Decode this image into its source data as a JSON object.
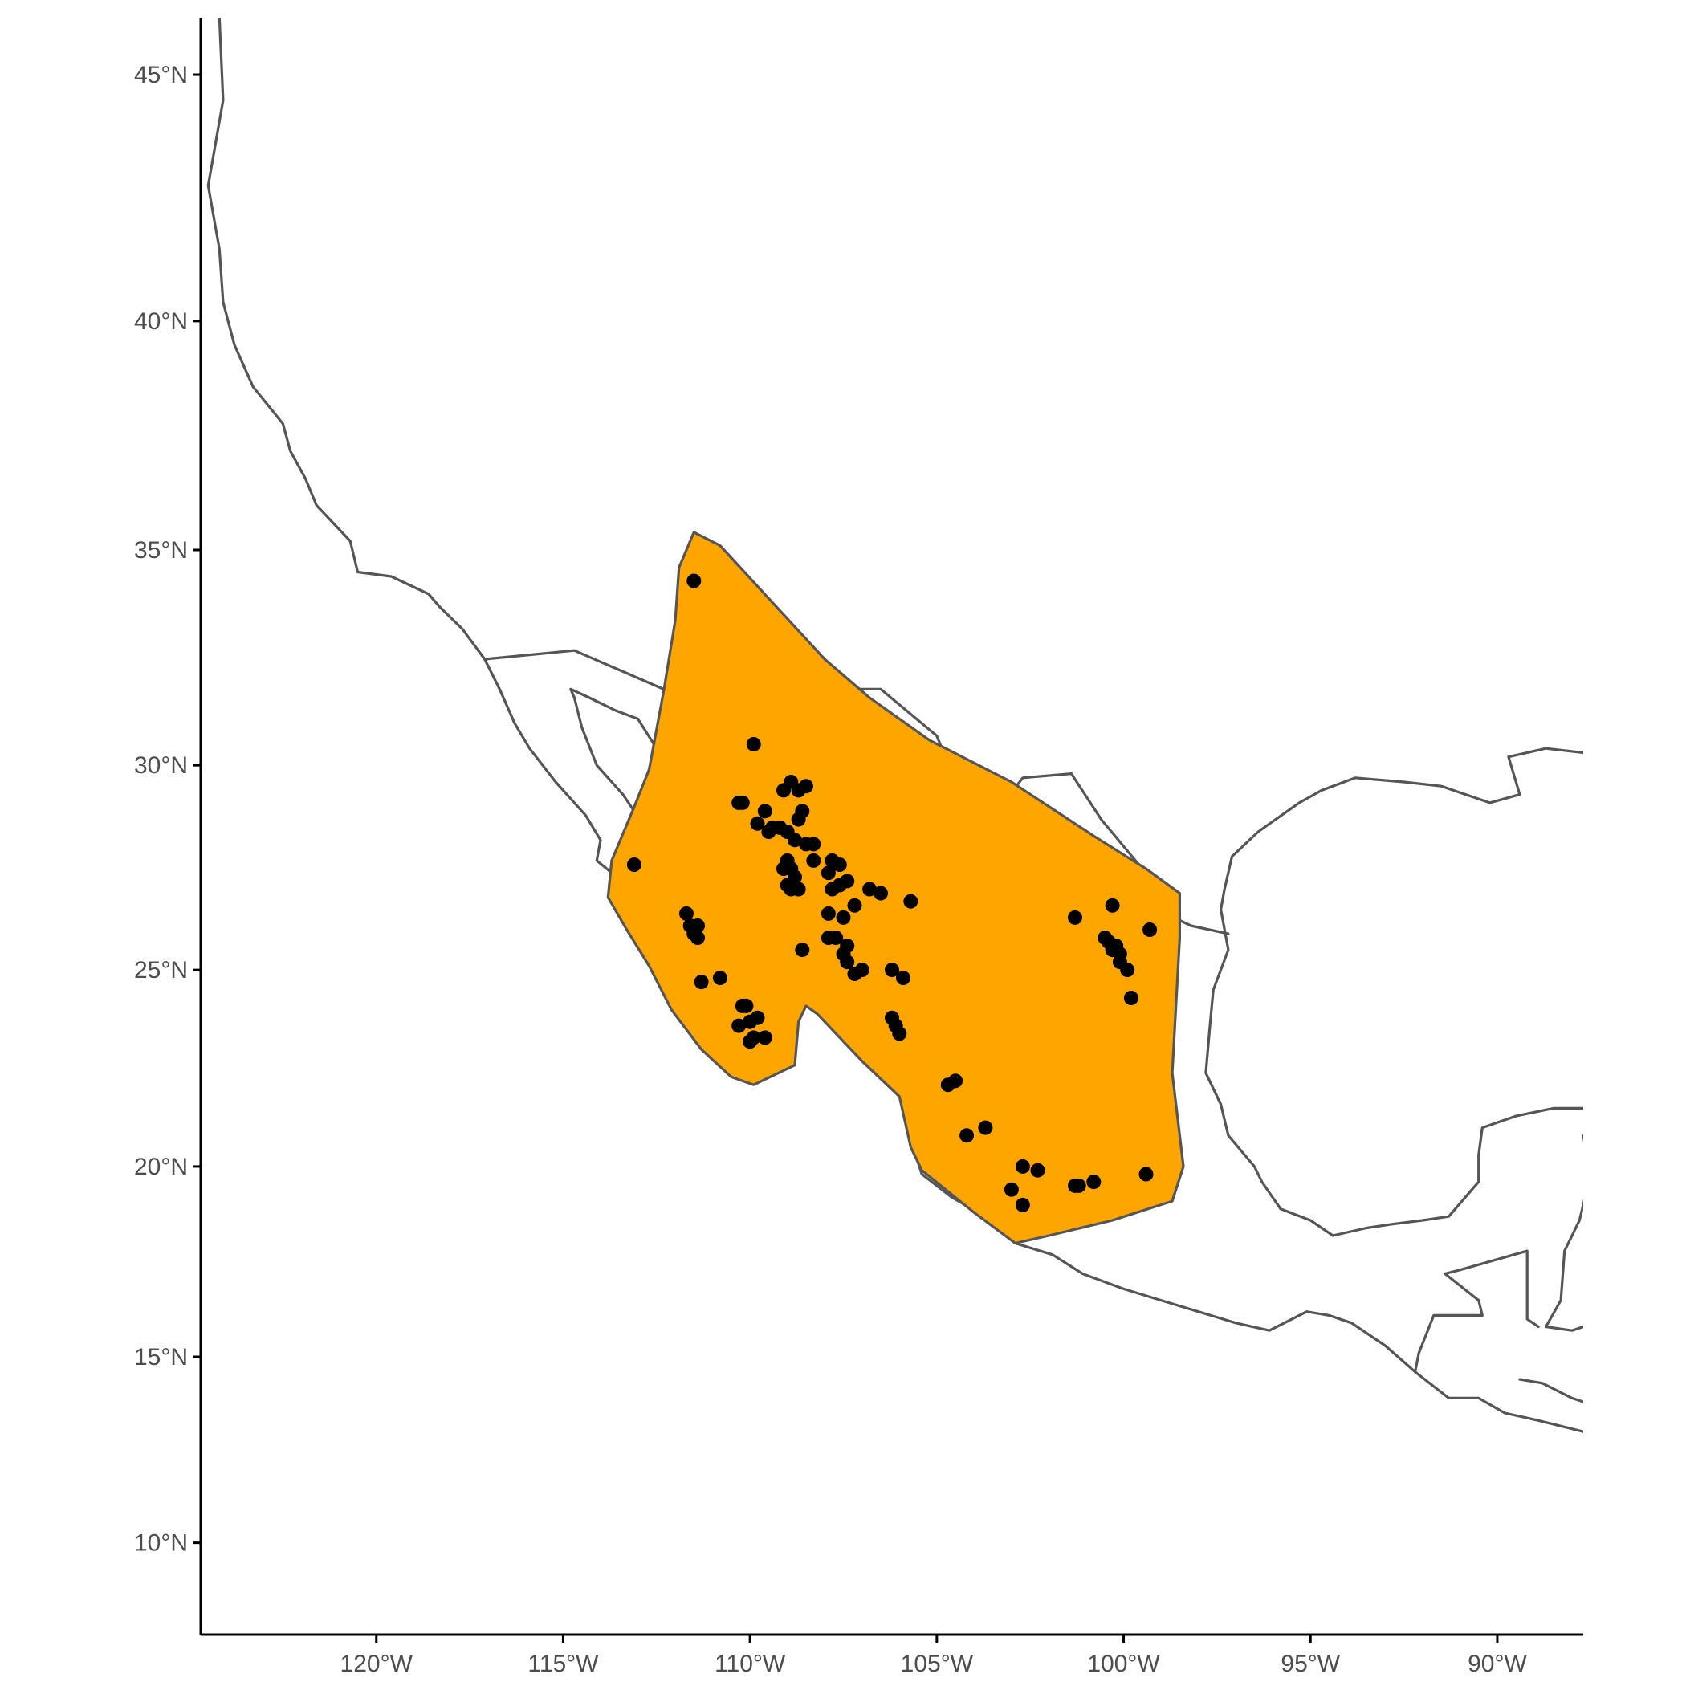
{
  "colors": {
    "range_fill": "#FFA500",
    "outline": "#555555",
    "point": "#000000",
    "axis": "#000000",
    "tick_text": "#4d4d4d",
    "background": "#ffffff"
  },
  "chart_data": {
    "type": "scatter",
    "title": "",
    "xlabel": "",
    "ylabel": "",
    "xlim": [
      -124.7,
      -87.7
    ],
    "ylim": [
      7.5,
      46.1
    ],
    "grid": false,
    "x_ticks": [
      {
        "value": -120,
        "label": "120°W"
      },
      {
        "value": -115,
        "label": "115°W"
      },
      {
        "value": -110,
        "label": "110°W"
      },
      {
        "value": -105,
        "label": "105°W"
      },
      {
        "value": -100,
        "label": "100°W"
      },
      {
        "value": -95,
        "label": "95°W"
      },
      {
        "value": -90,
        "label": "90°W"
      }
    ],
    "y_ticks": [
      {
        "value": 10,
        "label": "10°N"
      },
      {
        "value": 15,
        "label": "15°N"
      },
      {
        "value": 20,
        "label": "20°N"
      },
      {
        "value": 25,
        "label": "25°N"
      },
      {
        "value": 30,
        "label": "30°N"
      },
      {
        "value": 35,
        "label": "35°N"
      },
      {
        "value": 40,
        "label": "40°N"
      },
      {
        "value": 45,
        "label": "45°N"
      }
    ],
    "range_polygon": [
      [
        -111.5,
        35.4
      ],
      [
        -110.8,
        35.1
      ],
      [
        -109.5,
        33.9
      ],
      [
        -108.0,
        32.5
      ],
      [
        -106.8,
        31.6
      ],
      [
        -105.2,
        30.6
      ],
      [
        -103.0,
        29.6
      ],
      [
        -100.8,
        28.3
      ],
      [
        -99.4,
        27.5
      ],
      [
        -98.5,
        26.9
      ],
      [
        -98.5,
        25.8
      ],
      [
        -98.7,
        22.4
      ],
      [
        -98.4,
        20.0
      ],
      [
        -98.7,
        19.1
      ],
      [
        -100.3,
        18.6
      ],
      [
        -102.0,
        18.2
      ],
      [
        -102.9,
        18.0
      ],
      [
        -104.0,
        18.8
      ],
      [
        -105.4,
        19.9
      ],
      [
        -105.7,
        20.5
      ],
      [
        -106.0,
        21.8
      ],
      [
        -107.0,
        22.7
      ],
      [
        -108.2,
        23.9
      ],
      [
        -108.5,
        24.1
      ],
      [
        -108.7,
        23.7
      ],
      [
        -108.8,
        22.6
      ],
      [
        -109.9,
        22.1
      ],
      [
        -110.5,
        22.3
      ],
      [
        -111.3,
        23.0
      ],
      [
        -112.1,
        24.0
      ],
      [
        -112.7,
        25.1
      ],
      [
        -113.3,
        26.0
      ],
      [
        -113.8,
        26.8
      ],
      [
        -113.7,
        27.7
      ],
      [
        -113.1,
        29.0
      ],
      [
        -112.7,
        29.9
      ],
      [
        -112.3,
        31.8
      ],
      [
        -112.0,
        33.4
      ],
      [
        -111.9,
        34.6
      ]
    ],
    "points": [
      [
        -111.5,
        34.3
      ],
      [
        -109.9,
        30.5
      ],
      [
        -113.1,
        27.6
      ],
      [
        -110.3,
        29.1
      ],
      [
        -110.2,
        29.1
      ],
      [
        -109.8,
        28.6
      ],
      [
        -109.6,
        28.9
      ],
      [
        -109.4,
        28.5
      ],
      [
        -109.5,
        28.4
      ],
      [
        -109.2,
        28.5
      ],
      [
        -109.0,
        28.4
      ],
      [
        -109.1,
        29.4
      ],
      [
        -108.9,
        29.6
      ],
      [
        -108.7,
        29.4
      ],
      [
        -108.5,
        29.5
      ],
      [
        -108.6,
        28.9
      ],
      [
        -108.7,
        28.7
      ],
      [
        -108.8,
        28.2
      ],
      [
        -108.5,
        28.1
      ],
      [
        -108.3,
        28.1
      ],
      [
        -108.3,
        27.7
      ],
      [
        -109.0,
        27.7
      ],
      [
        -109.1,
        27.5
      ],
      [
        -108.9,
        27.5
      ],
      [
        -108.8,
        27.3
      ],
      [
        -109.0,
        27.1
      ],
      [
        -108.9,
        27.0
      ],
      [
        -108.7,
        27.0
      ],
      [
        -108.6,
        25.5
      ],
      [
        -107.9,
        27.4
      ],
      [
        -107.8,
        27.7
      ],
      [
        -107.6,
        27.6
      ],
      [
        -107.6,
        27.1
      ],
      [
        -107.8,
        27.0
      ],
      [
        -107.4,
        27.2
      ],
      [
        -107.2,
        26.6
      ],
      [
        -106.8,
        27.0
      ],
      [
        -106.5,
        26.9
      ],
      [
        -105.7,
        26.7
      ],
      [
        -107.9,
        26.4
      ],
      [
        -107.5,
        26.3
      ],
      [
        -107.9,
        25.8
      ],
      [
        -107.7,
        25.8
      ],
      [
        -107.4,
        25.6
      ],
      [
        -107.5,
        25.4
      ],
      [
        -107.4,
        25.2
      ],
      [
        -107.2,
        24.9
      ],
      [
        -107.0,
        25.0
      ],
      [
        -106.2,
        25.0
      ],
      [
        -105.9,
        24.8
      ],
      [
        -106.2,
        23.8
      ],
      [
        -106.1,
        23.6
      ],
      [
        -106.0,
        23.4
      ],
      [
        -111.7,
        26.4
      ],
      [
        -111.6,
        26.1
      ],
      [
        -111.4,
        26.1
      ],
      [
        -111.5,
        25.9
      ],
      [
        -111.4,
        25.8
      ],
      [
        -111.3,
        24.7
      ],
      [
        -110.8,
        24.8
      ],
      [
        -110.3,
        23.6
      ],
      [
        -110.1,
        24.1
      ],
      [
        -110.2,
        24.1
      ],
      [
        -110.0,
        23.7
      ],
      [
        -109.8,
        23.8
      ],
      [
        -110.0,
        23.2
      ],
      [
        -109.9,
        23.3
      ],
      [
        -109.6,
        23.3
      ],
      [
        -104.7,
        22.1
      ],
      [
        -104.5,
        22.2
      ],
      [
        -103.7,
        21.0
      ],
      [
        -104.2,
        20.8
      ],
      [
        -102.7,
        20.0
      ],
      [
        -102.3,
        19.9
      ],
      [
        -103.0,
        19.4
      ],
      [
        -102.7,
        19.0
      ],
      [
        -101.2,
        19.5
      ],
      [
        -101.3,
        19.5
      ],
      [
        -100.8,
        19.6
      ],
      [
        -101.3,
        26.3
      ],
      [
        -100.3,
        26.6
      ],
      [
        -100.5,
        25.8
      ],
      [
        -100.4,
        25.7
      ],
      [
        -100.2,
        25.6
      ],
      [
        -100.3,
        25.5
      ],
      [
        -100.1,
        25.4
      ],
      [
        -100.1,
        25.2
      ],
      [
        -99.9,
        25.0
      ],
      [
        -99.8,
        24.3
      ],
      [
        -99.3,
        26.0
      ],
      [
        -99.4,
        19.8
      ]
    ]
  }
}
